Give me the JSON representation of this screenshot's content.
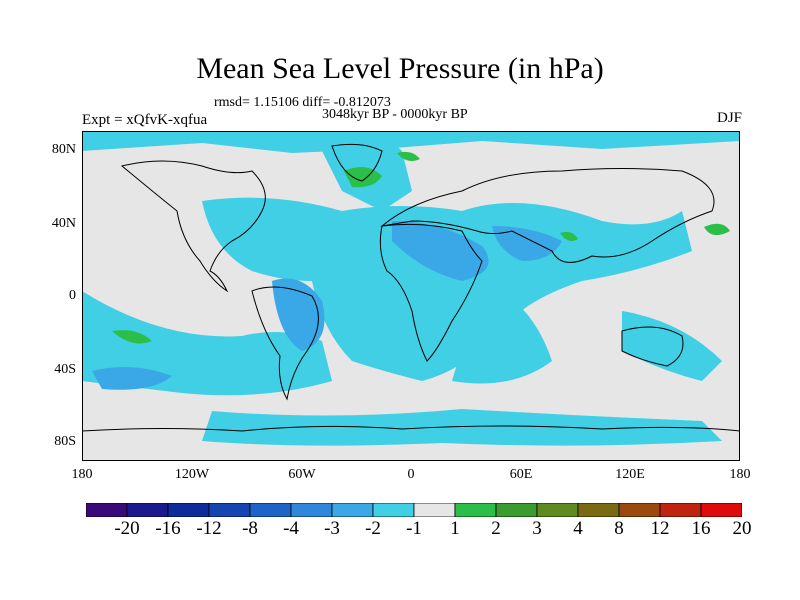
{
  "title": "Mean Sea Level Pressure (in hPa)",
  "stats": "rmsd= 1.15106 diff= -0.812073",
  "period": "3048kyr BP - 0000kyr BP",
  "experiment": "Expt = xQfvK-xqfua",
  "season": "DJF",
  "map": {
    "projection": "cylindrical-equidistant",
    "lon_range": [
      -180,
      180
    ],
    "lat_range": [
      -90,
      90
    ],
    "y_ticks": [
      {
        "lat": 80,
        "label": "80N"
      },
      {
        "lat": 40,
        "label": "40N"
      },
      {
        "lat": 0,
        "label": "0"
      },
      {
        "lat": -40,
        "label": "40S"
      },
      {
        "lat": -80,
        "label": "80S"
      }
    ],
    "x_ticks": [
      {
        "lon": -180,
        "label": "180"
      },
      {
        "lon": -120,
        "label": "120W"
      },
      {
        "lon": -60,
        "label": "60W"
      },
      {
        "lon": 0,
        "label": "0"
      },
      {
        "lon": 60,
        "label": "60E"
      },
      {
        "lon": 120,
        "label": "120E"
      },
      {
        "lon": 180,
        "label": "180"
      }
    ],
    "background_color": "#e6e6e6",
    "coastline_color": "#000000"
  },
  "colorbar": {
    "colors": [
      "#3a0a7a",
      "#1a1a8e",
      "#0e2c9a",
      "#1445b0",
      "#1e64c8",
      "#2d87da",
      "#3aa7e6",
      "#40cfe4",
      "#e6e6e6",
      "#2bbf4a",
      "#3a9b2f",
      "#5e8a1e",
      "#7a6a12",
      "#9a4a0e",
      "#c0240e",
      "#e00a0a"
    ],
    "labels": [
      "-20",
      "-16",
      "-12",
      "-8",
      "-4",
      "-3",
      "-2",
      "-1",
      "1",
      "2",
      "3",
      "4",
      "8",
      "12",
      "16",
      "20"
    ]
  }
}
